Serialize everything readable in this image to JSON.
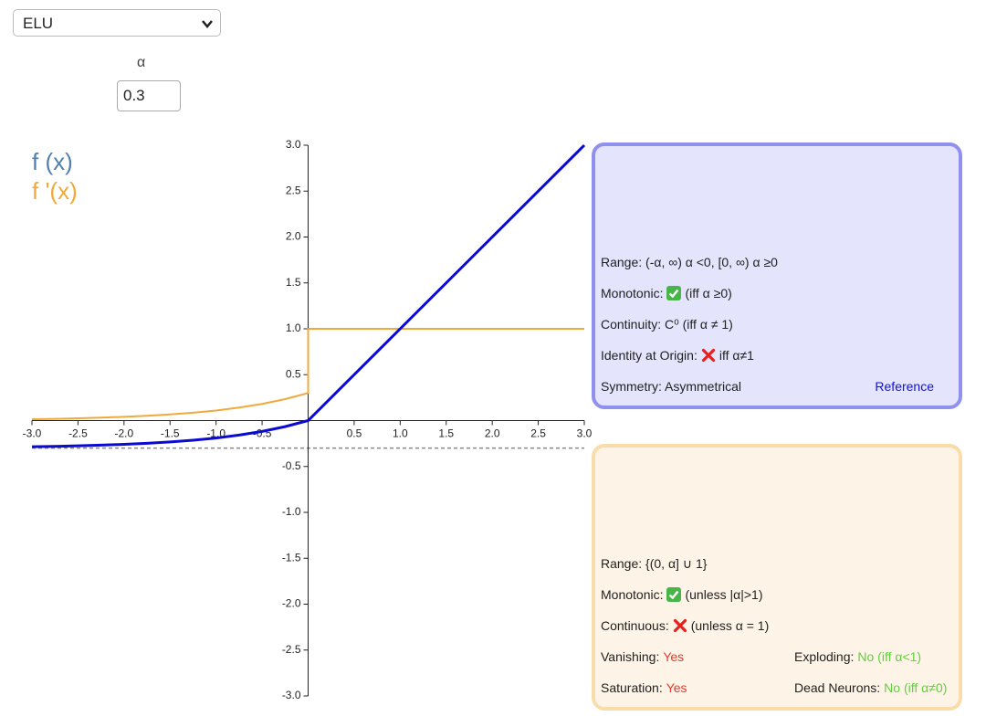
{
  "controls": {
    "function": "ELU",
    "alpha_label": "α",
    "alpha": 0.3
  },
  "chart_data": {
    "type": "line",
    "x": [
      -3,
      -2.75,
      -2.5,
      -2.25,
      -2,
      -1.75,
      -1.5,
      -1.25,
      -1,
      -0.75,
      -0.5,
      -0.25,
      0,
      0,
      3
    ],
    "series": [
      {
        "name": "f (x)",
        "color": "#0a0ad2",
        "legend_color": "#5080b0",
        "values": [
          -0.285,
          -0.281,
          -0.275,
          -0.268,
          -0.259,
          -0.248,
          -0.233,
          -0.214,
          -0.19,
          -0.158,
          -0.118,
          -0.066,
          0,
          0,
          3
        ]
      },
      {
        "name": "f '(x)",
        "color": "#f0aa3c",
        "legend_color": "#f0aa3c",
        "values": [
          0.015,
          0.019,
          0.025,
          0.032,
          0.041,
          0.052,
          0.067,
          0.086,
          0.11,
          0.142,
          0.182,
          0.234,
          0.3,
          1,
          1
        ]
      }
    ],
    "xlim": [
      -3,
      3
    ],
    "ylim": [
      -3,
      3
    ],
    "xticks": [
      {
        "value": -3,
        "label": "-3.0"
      },
      {
        "value": -2.5,
        "label": "-2.5"
      },
      {
        "value": -2,
        "label": "-2.0"
      },
      {
        "value": -1.5,
        "label": "-1.5"
      },
      {
        "value": -1,
        "label": "-1.0"
      },
      {
        "value": -0.5,
        "label": "-0.5"
      },
      0.5,
      {
        "value": 1,
        "label": "1.0"
      },
      1.5,
      {
        "value": 2,
        "label": "2.0"
      },
      2.5,
      {
        "value": 3,
        "label": "3.0"
      }
    ],
    "yticks": [
      {
        "value": 3,
        "label": "3.0"
      },
      2.5,
      {
        "value": 2,
        "label": "2.0"
      },
      1.5,
      {
        "value": 1,
        "label": "1.0"
      },
      0.5,
      -0.5,
      {
        "value": -1,
        "label": "-1.0"
      },
      -1.5,
      {
        "value": -2,
        "label": "-2.0"
      },
      -2.5,
      {
        "value": -3,
        "label": "-3.0"
      }
    ]
  },
  "function_panel": {
    "rows": [
      [
        [
          {
            "text": "Range: (-α, ∞) α <0, [0, ∞) α ≥0"
          }
        ]
      ],
      [
        [
          {
            "text": "Monotonic:"
          },
          {
            "icon": "check"
          },
          {
            "text": "(iff α ≥0)"
          }
        ]
      ],
      [
        [
          {
            "text": "Continuity: C⁰ (iff α ≠ 1)"
          }
        ]
      ],
      [
        [
          {
            "text": "Identity at Origin:"
          },
          {
            "icon": "cross"
          },
          {
            "text": "iff α≠1"
          }
        ]
      ],
      [
        [
          {
            "text": "Symmetry: Asymmetrical"
          }
        ]
      ]
    ],
    "reference": "Reference"
  },
  "derivative_panel": {
    "rows": [
      [
        [
          {
            "text": "Range: {(0, α] ∪ 1}"
          }
        ]
      ],
      [
        [
          {
            "text": "Monotonic:"
          },
          {
            "icon": "check"
          },
          {
            "text": "(unless |α|>1)"
          }
        ]
      ],
      [
        [
          {
            "text": "Continuous:"
          },
          {
            "icon": "cross"
          },
          {
            "text": "(unless α = 1)"
          }
        ]
      ],
      [
        [
          {
            "text": "Vanishing:"
          },
          {
            "text": "Yes",
            "color": "#e8372e"
          }
        ],
        [
          {
            "text": "Exploding:"
          },
          {
            "text": "No (iff α<1)",
            "color": "#5fd13c"
          }
        ]
      ],
      [
        [
          {
            "text": "Saturation:"
          },
          {
            "text": "Yes",
            "color": "#e8372e"
          }
        ],
        [
          {
            "text": "Dead Neurons:"
          },
          {
            "text": "No (iff α≠0)",
            "color": "#5fd13c"
          }
        ]
      ]
    ]
  }
}
